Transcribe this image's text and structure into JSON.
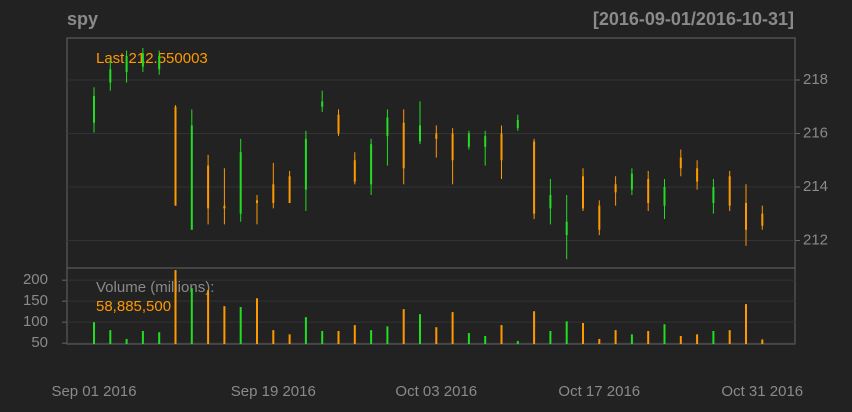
{
  "chart_data": {
    "type": "candlestick",
    "title": "spy",
    "date_range": "[2016-09-01/2016-10-31]",
    "last_label": "Last 212.550003",
    "up_color": "#22dd22",
    "down_color": "#ff9900",
    "grid": true,
    "categories": [
      "Sep 01 2016",
      null,
      null,
      null,
      null,
      null,
      null,
      null,
      null,
      null,
      null,
      "Sep 19 2016",
      null,
      null,
      null,
      null,
      null,
      null,
      null,
      null,
      null,
      "Oct 03 2016",
      null,
      null,
      null,
      null,
      null,
      null,
      null,
      null,
      null,
      "Oct 17 2016",
      null,
      null,
      null,
      null,
      null,
      null,
      null,
      null,
      null,
      "Oct 31 2016"
    ],
    "open": [
      216.4,
      217.9,
      218.3,
      218.5,
      218.4,
      217.0,
      212.4,
      214.8,
      213.3,
      213.0,
      213.5,
      214.1,
      214.4,
      213.9,
      217.0,
      216.7,
      215.0,
      214.1,
      215.9,
      216.4,
      215.7,
      216.0,
      216.0,
      215.5,
      215.5,
      216.0,
      216.2,
      215.7,
      213.2,
      212.2,
      214.4,
      213.3,
      214.1,
      213.9,
      214.3,
      213.3,
      215.1,
      214.7,
      213.4,
      214.4,
      213.4,
      213.0
    ],
    "high": [
      217.73,
      218.8,
      219.1,
      219.2,
      219.1,
      217.06,
      216.9,
      215.2,
      214.7,
      215.8,
      213.7,
      214.9,
      214.6,
      216.1,
      217.6,
      216.9,
      215.3,
      215.8,
      216.9,
      216.9,
      217.2,
      216.3,
      216.2,
      216.1,
      216.1,
      216.3,
      216.7,
      215.8,
      214.3,
      213.7,
      214.7,
      213.5,
      214.4,
      214.7,
      214.6,
      214.3,
      215.4,
      215.0,
      214.3,
      214.6,
      214.1,
      213.3
    ],
    "low": [
      216.03,
      217.6,
      217.9,
      218.3,
      218.2,
      213.3,
      212.4,
      212.6,
      212.6,
      212.7,
      212.6,
      213.2,
      213.4,
      213.1,
      216.8,
      215.9,
      214.1,
      213.7,
      214.8,
      214.1,
      215.6,
      215.1,
      214.1,
      215.4,
      214.8,
      214.3,
      216.1,
      212.8,
      212.6,
      211.3,
      213.1,
      212.2,
      213.3,
      213.7,
      213.1,
      212.8,
      214.4,
      213.9,
      213.0,
      213.1,
      211.8,
      212.4
    ],
    "close": [
      217.4,
      218.4,
      218.9,
      219.0,
      218.9,
      213.3,
      216.3,
      213.2,
      213.2,
      215.3,
      213.4,
      213.4,
      213.4,
      215.8,
      217.2,
      216.0,
      214.2,
      215.6,
      216.6,
      214.7,
      216.3,
      215.8,
      215.0,
      216.0,
      215.9,
      215.0,
      216.5,
      213.0,
      213.7,
      212.7,
      213.2,
      212.4,
      213.8,
      214.5,
      213.4,
      214.0,
      214.7,
      214.2,
      214.0,
      213.3,
      212.4,
      212.55
    ],
    "ylim": [
      210.97,
      219.57
    ],
    "yticks": [
      212,
      214,
      216,
      218
    ],
    "volume": {
      "label": "Volume (millions):",
      "last_label": "58,885,500",
      "values": [
        100,
        81,
        60,
        79,
        76,
        224,
        181,
        176,
        138,
        136,
        157,
        81,
        71,
        112,
        79,
        79,
        93,
        81,
        90,
        131,
        119,
        88,
        124,
        74,
        67,
        93,
        55,
        126,
        79,
        102,
        98,
        60,
        81,
        71,
        79,
        95,
        67,
        71,
        79,
        81,
        143,
        58.8855
      ],
      "ylim": [
        48,
        229
      ],
      "yticks": [
        50,
        100,
        150,
        200
      ]
    }
  }
}
